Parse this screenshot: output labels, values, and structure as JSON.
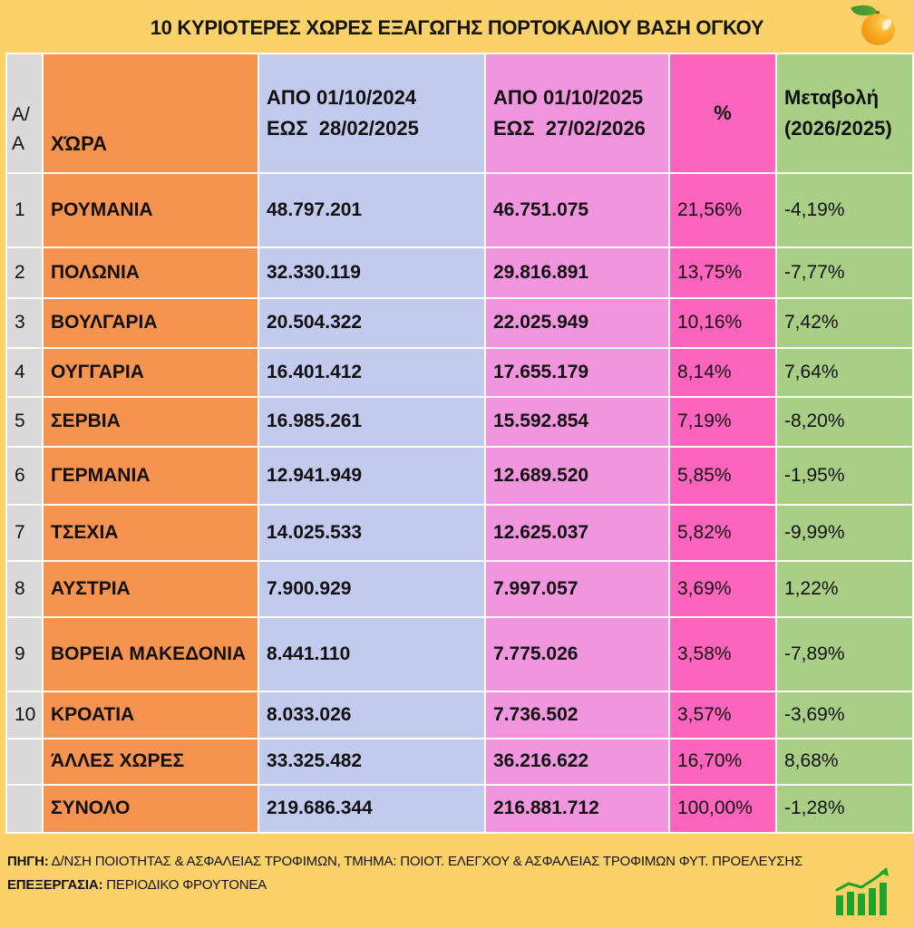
{
  "title": "10 ΚΥΡΙΟΤΕΡΕΣ ΧΩΡΕΣ ΕΞΑΓΩΓΗΣ ΠΟΡΤΟΚΑΛΙΟΥ ΒΑΣΗ ΟΓΚΟΥ",
  "colors": {
    "background": "#FBD269",
    "index_col": "#D9D9D9",
    "country_col": "#F79350",
    "period1_col": "#C2CAEE",
    "period2_col": "#F195DF",
    "percent_col": "#FC64BD",
    "change_col": "#A9CF86",
    "gridline": "#FDFCF5",
    "icon_green": "#1FA32A"
  },
  "table": {
    "headers": {
      "index": "Α/Α",
      "country": "ΧΏΡΑ",
      "period1": "ΑΠΟ 01/10/2024\nΕΩΣ  28/02/2025",
      "period2": "ΑΠΟ 01/10/2025\nΕΩΣ  27/02/2026",
      "percent": "%",
      "change": "Μεταβολή\n(2026/2025)"
    },
    "rows": [
      {
        "index": "1",
        "country": "ΡΟΥΜΑΝΙΑ",
        "period1": "48.797.201",
        "period2": "46.751.075",
        "percent": "21,56%",
        "change": "-4,19%"
      },
      {
        "index": "2",
        "country": "ΠΟΛΩΝΙΑ",
        "period1": "32.330.119",
        "period2": "29.816.891",
        "percent": "13,75%",
        "change": "-7,77%"
      },
      {
        "index": "3",
        "country": "ΒΟΥΛΓΑΡΙΑ",
        "period1": "20.504.322",
        "period2": "22.025.949",
        "percent": "10,16%",
        "change": "7,42%"
      },
      {
        "index": "4",
        "country": "ΟΥΓΓΑΡΙΑ",
        "period1": "16.401.412",
        "period2": "17.655.179",
        "percent": "8,14%",
        "change": "7,64%"
      },
      {
        "index": "5",
        "country": "ΣΕΡΒΙΑ",
        "period1": "16.985.261",
        "period2": "15.592.854",
        "percent": "7,19%",
        "change": "-8,20%"
      },
      {
        "index": "6",
        "country": "ΓΕΡΜΑΝΙΑ",
        "period1": "12.941.949",
        "period2": "12.689.520",
        "percent": "5,85%",
        "change": "-1,95%"
      },
      {
        "index": "7",
        "country": "ΤΣΕΧΙΑ",
        "period1": "14.025.533",
        "period2": "12.625.037",
        "percent": "5,82%",
        "change": "-9,99%"
      },
      {
        "index": "8",
        "country": "ΑΥΣΤΡΙΑ",
        "period1": "7.900.929",
        "period2": "7.997.057",
        "percent": "3,69%",
        "change": "1,22%"
      },
      {
        "index": "9",
        "country": "ΒΟΡΕΙΑ ΜΑΚΕΔΟΝΙΑ",
        "period1": "8.441.110",
        "period2": "7.775.026",
        "percent": "3,58%",
        "change": "-7,89%"
      },
      {
        "index": "10",
        "country": "ΚΡΟΑΤΙΑ",
        "period1": "8.033.026",
        "period2": "7.736.502",
        "percent": "3,57%",
        "change": "-3,69%"
      },
      {
        "index": "",
        "country": "ΆΛΛΕΣ ΧΩΡΕΣ",
        "period1": "33.325.482",
        "period2": "36.216.622",
        "percent": "16,70%",
        "change": "8,68%"
      },
      {
        "index": "",
        "country": "ΣΥΝΟΛΟ",
        "period1": "219.686.344",
        "period2": "216.881.712",
        "percent": "100,00%",
        "change": "-1,28%"
      }
    ]
  },
  "footer": {
    "source_label": "ΠΗΓΗ:",
    "source_text": " Δ/ΝΣΗ ΠΟΙΟΤΗΤΑΣ & ΑΣΦΑΛΕΙΑΣ ΤΡΟΦΙΜΩΝ, ΤΜΗΜΑ: ΠΟΙΟΤ. ΕΛΕΓΧΟΥ & ΑΣΦΑΛΕΙΑΣ ΤΡΟΦΙΜΩΝ ΦΥΤ. ΠΡΟΕΛΕΥΣΗΣ",
    "processing_label": "ΕΠΕΞΕΡΓΑΣΙΑ:",
    "processing_text": " ΠΕΡΙΟΔΙΚΟ ΦΡΟΥΤΟΝΕΑ"
  },
  "icons": {
    "orange": "orange-fruit-icon",
    "chart": "growth-chart-icon"
  },
  "chart_data": {
    "type": "table",
    "title": "10 ΚΥΡΙΟΤΕΡΕΣ ΧΩΡΕΣ ΕΞΑΓΩΓΗΣ ΠΟΡΤΟΚΑΛΙΟΥ ΒΑΣΗ ΟΓΚΟΥ",
    "columns": [
      "Α/Α",
      "ΧΏΡΑ",
      "ΑΠΟ 01/10/2024 ΕΩΣ 28/02/2025",
      "ΑΠΟ 01/10/2025 ΕΩΣ 27/02/2026",
      "%",
      "Μεταβολή (2026/2025)"
    ],
    "rows": [
      [
        1,
        "ΡΟΥΜΑΝΙΑ",
        48797201,
        46751075,
        "21,56%",
        "-4,19%"
      ],
      [
        2,
        "ΠΟΛΩΝΙΑ",
        32330119,
        29816891,
        "13,75%",
        "-7,77%"
      ],
      [
        3,
        "ΒΟΥΛΓΑΡΙΑ",
        20504322,
        22025949,
        "10,16%",
        "7,42%"
      ],
      [
        4,
        "ΟΥΓΓΑΡΙΑ",
        16401412,
        17655179,
        "8,14%",
        "7,64%"
      ],
      [
        5,
        "ΣΕΡΒΙΑ",
        16985261,
        15592854,
        "7,19%",
        "-8,20%"
      ],
      [
        6,
        "ΓΕΡΜΑΝΙΑ",
        12941949,
        12689520,
        "5,85%",
        "-1,95%"
      ],
      [
        7,
        "ΤΣΕΧΙΑ",
        14025533,
        12625037,
        "5,82%",
        "-9,99%"
      ],
      [
        8,
        "ΑΥΣΤΡΙΑ",
        7900929,
        7997057,
        "3,69%",
        "1,22%"
      ],
      [
        9,
        "ΒΟΡΕΙΑ ΜΑΚΕΔΟΝΙΑ",
        8441110,
        7775026,
        "3,58%",
        "-7,89%"
      ],
      [
        10,
        "ΚΡΟΑΤΙΑ",
        8033026,
        7736502,
        "3,57%",
        "-3,69%"
      ],
      [
        null,
        "ΆΛΛΕΣ ΧΩΡΕΣ",
        33325482,
        36216622,
        "16,70%",
        "8,68%"
      ],
      [
        null,
        "ΣΥΝΟΛΟ",
        219686344,
        216881712,
        "100,00%",
        "-1,28%"
      ]
    ]
  }
}
